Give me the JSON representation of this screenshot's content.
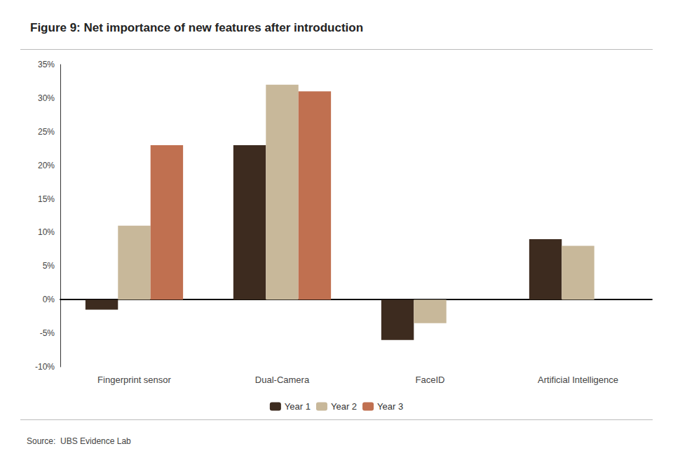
{
  "chart_data": {
    "type": "bar",
    "title": "Figure 9: Net importance of new features after introduction",
    "categories": [
      "Fingerprint sensor",
      "Dual-Camera",
      "FaceID",
      "Artificial Intelligence"
    ],
    "series": [
      {
        "name": "Year 1",
        "color": "#3d2b1f",
        "values": [
          -1.5,
          23,
          -6,
          9
        ]
      },
      {
        "name": "Year 2",
        "color": "#c8b89a",
        "values": [
          11,
          32,
          -3.5,
          8
        ]
      },
      {
        "name": "Year 3",
        "color": "#c07050",
        "values": [
          23,
          31,
          null,
          null
        ]
      }
    ],
    "ylim": [
      -10,
      35
    ],
    "yticks": [
      {
        "value": -10,
        "label": "-10%"
      },
      {
        "value": -5,
        "label": "-5%"
      },
      {
        "value": 0,
        "label": "0%"
      },
      {
        "value": 5,
        "label": "5%"
      },
      {
        "value": 10,
        "label": "10%"
      },
      {
        "value": 15,
        "label": "15%"
      },
      {
        "value": 20,
        "label": "20%"
      },
      {
        "value": 25,
        "label": "25%"
      },
      {
        "value": 30,
        "label": "30%"
      },
      {
        "value": 35,
        "label": "35%"
      }
    ],
    "annotations": [
      "Source:  UBS Evidence Lab"
    ],
    "legend": "bottom",
    "grid": false
  }
}
